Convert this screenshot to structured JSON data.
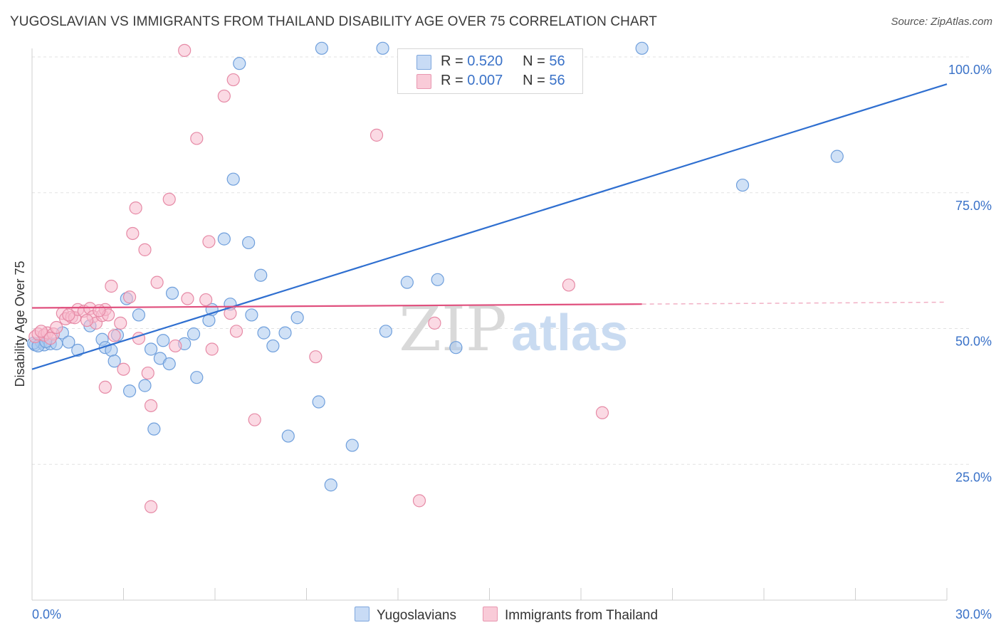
{
  "title": "YUGOSLAVIAN VS IMMIGRANTS FROM THAILAND DISABILITY AGE OVER 75 CORRELATION CHART",
  "source": "Source: ZipAtlas.com",
  "watermark": {
    "zip": "ZIP",
    "atlas": "atlas"
  },
  "legend": {
    "r_label": "R =",
    "n_label": "N =",
    "rows": [
      {
        "series": "Yugoslavians",
        "r": "0.520",
        "n": "56"
      },
      {
        "series": "Immigrants from Thailand",
        "r": "0.007",
        "n": "56"
      }
    ]
  },
  "colors": {
    "yugoslavians_fill": "#a9c8ef",
    "yugoslavians_stroke": "#6f9fdc",
    "yugoslavians_line": "#2f6fd0",
    "thailand_fill": "#f7bccd",
    "thailand_stroke": "#e68aa6",
    "thailand_line": "#e0507e",
    "axis_label": "#3a72c8",
    "grid": "#e2e2e2"
  },
  "chart_data": {
    "type": "scatter",
    "title": "YUGOSLAVIAN VS IMMIGRANTS FROM THAILAND DISABILITY AGE OVER 75 CORRELATION CHART",
    "xlabel": "",
    "ylabel": "Disability Age Over 75",
    "xlim": [
      0,
      30
    ],
    "ylim": [
      0,
      100
    ],
    "x_tick_labels": [
      "0.0%",
      "30.0%"
    ],
    "y_ticks": [
      25,
      50,
      75,
      100
    ],
    "y_tick_labels": [
      "25.0%",
      "50.0%",
      "75.0%",
      "100.0%"
    ],
    "grid": true,
    "legend_position": "bottom",
    "series": [
      {
        "name": "Yugoslavians",
        "r": 0.52,
        "n": 56,
        "trend": {
          "x": [
            0,
            30
          ],
          "y": [
            42.5,
            95.0
          ],
          "dashed_from": null
        },
        "points": [
          [
            0.1,
            47
          ],
          [
            0.3,
            47.5
          ],
          [
            0.4,
            47
          ],
          [
            0.6,
            47.2
          ],
          [
            0.8,
            47.2
          ],
          [
            1.0,
            49.2
          ],
          [
            1.2,
            47.5
          ],
          [
            1.5,
            46
          ],
          [
            1.9,
            50.5
          ],
          [
            2.3,
            48
          ],
          [
            2.4,
            46.5
          ],
          [
            2.6,
            46
          ],
          [
            2.7,
            44
          ],
          [
            2.8,
            48.8
          ],
          [
            3.1,
            55.5
          ],
          [
            3.2,
            38.5
          ],
          [
            3.5,
            52.5
          ],
          [
            3.7,
            39.5
          ],
          [
            3.9,
            46.2
          ],
          [
            4.0,
            31.5
          ],
          [
            4.2,
            44.5
          ],
          [
            4.3,
            47.8
          ],
          [
            4.5,
            43.5
          ],
          [
            4.6,
            56.5
          ],
          [
            5.0,
            47.2
          ],
          [
            5.3,
            49
          ],
          [
            5.4,
            41
          ],
          [
            5.8,
            51.5
          ],
          [
            5.9,
            53.5
          ],
          [
            6.3,
            66.5
          ],
          [
            6.5,
            54.5
          ],
          [
            6.6,
            77.5
          ],
          [
            6.8,
            98.8
          ],
          [
            7.1,
            65.8
          ],
          [
            7.2,
            52.5
          ],
          [
            7.5,
            59.8
          ],
          [
            7.6,
            49.2
          ],
          [
            7.9,
            46.8
          ],
          [
            8.3,
            49.2
          ],
          [
            8.4,
            30.2
          ],
          [
            8.7,
            52
          ],
          [
            9.4,
            36.5
          ],
          [
            9.5,
            101.6
          ],
          [
            9.8,
            21.2
          ],
          [
            10.5,
            28.5
          ],
          [
            11.5,
            101.6
          ],
          [
            11.6,
            49.5
          ],
          [
            12.3,
            58.5
          ],
          [
            13.3,
            59
          ],
          [
            13.9,
            46.5
          ],
          [
            20.0,
            101.6
          ],
          [
            23.3,
            76.4
          ],
          [
            26.4,
            81.7
          ],
          [
            0.05,
            47.3
          ],
          [
            0.2,
            46.8
          ],
          [
            0.45,
            47.6
          ]
        ]
      },
      {
        "name": "Immigrants from Thailand",
        "r": 0.007,
        "n": 56,
        "trend": {
          "x": [
            0,
            20
          ],
          "y": [
            53.8,
            54.5
          ],
          "dashed_from": 20
        },
        "points": [
          [
            0.1,
            48.5
          ],
          [
            0.2,
            49
          ],
          [
            0.4,
            48.8
          ],
          [
            0.5,
            49.2
          ],
          [
            0.7,
            49
          ],
          [
            0.8,
            50.2
          ],
          [
            1.0,
            52.8
          ],
          [
            1.1,
            51.8
          ],
          [
            1.3,
            52.1
          ],
          [
            1.4,
            52
          ],
          [
            1.5,
            53.5
          ],
          [
            1.7,
            53.2
          ],
          [
            1.9,
            53.7
          ],
          [
            2.0,
            52.2
          ],
          [
            2.1,
            51
          ],
          [
            2.3,
            52.4
          ],
          [
            2.4,
            53.5
          ],
          [
            2.5,
            52.5
          ],
          [
            2.4,
            39.2
          ],
          [
            2.6,
            57.8
          ],
          [
            2.7,
            48.7
          ],
          [
            2.9,
            51
          ],
          [
            3.0,
            42.5
          ],
          [
            3.2,
            55.8
          ],
          [
            3.3,
            67.5
          ],
          [
            3.4,
            72.2
          ],
          [
            3.5,
            48.2
          ],
          [
            3.7,
            64.5
          ],
          [
            3.8,
            41.8
          ],
          [
            3.9,
            35.8
          ],
          [
            3.9,
            17.2
          ],
          [
            4.1,
            58.5
          ],
          [
            4.5,
            73.8
          ],
          [
            4.7,
            46.8
          ],
          [
            5.0,
            101.2
          ],
          [
            5.1,
            55.5
          ],
          [
            5.4,
            85
          ],
          [
            5.7,
            55.3
          ],
          [
            5.8,
            66
          ],
          [
            5.9,
            46.2
          ],
          [
            6.3,
            92.8
          ],
          [
            6.6,
            95.8
          ],
          [
            6.5,
            52.8
          ],
          [
            6.7,
            49.5
          ],
          [
            7.3,
            33.2
          ],
          [
            9.3,
            44.8
          ],
          [
            11.3,
            85.6
          ],
          [
            12.7,
            18.3
          ],
          [
            13.2,
            51
          ],
          [
            17.6,
            58
          ],
          [
            18.7,
            34.5
          ],
          [
            0.3,
            49.5
          ],
          [
            0.6,
            48.2
          ],
          [
            1.2,
            52.5
          ],
          [
            2.2,
            53.3
          ],
          [
            1.8,
            51.5
          ]
        ]
      }
    ]
  }
}
